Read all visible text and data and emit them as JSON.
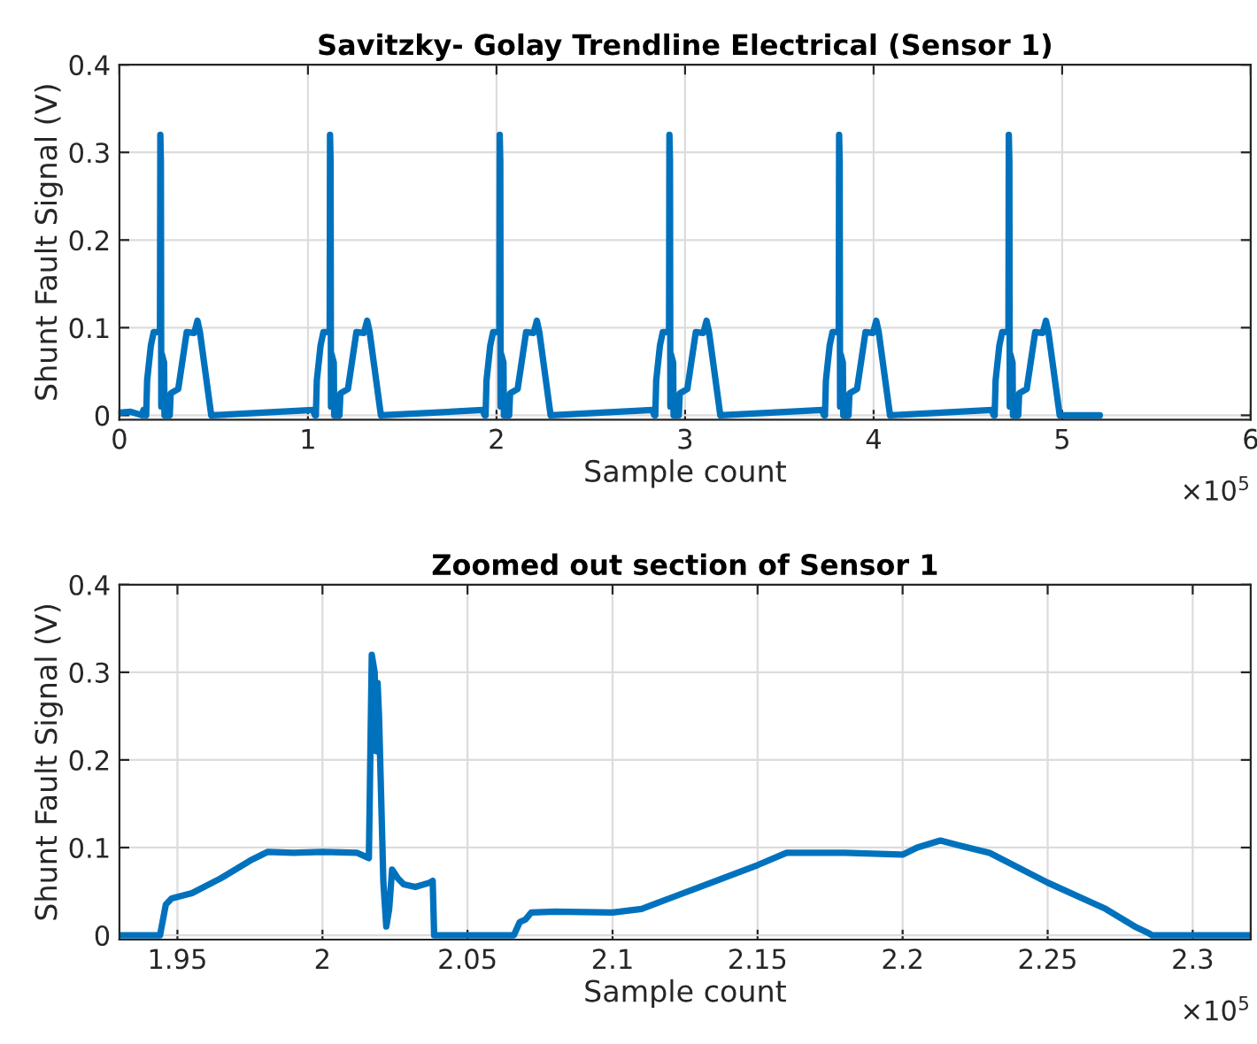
{
  "chart_data": [
    {
      "type": "line",
      "title": "Savitzky- Golay Trendline Electrical (Sensor 1)",
      "xlabel": "Sample count",
      "ylabel": "Shunt Fault Signal (V)",
      "annotations": [
        "×10$^{5}$"
      ],
      "grid": true,
      "marker": "none",
      "line_style": "solid",
      "xlim": [
        0,
        6
      ],
      "xticks": [
        0,
        1,
        2,
        3,
        4,
        5,
        6
      ],
      "ylim": [
        -0.005,
        0.4
      ],
      "yticks": [
        0,
        0.1,
        0.2,
        0.3,
        0.4
      ],
      "series": [
        {
          "color": "#0072bd",
          "x": [
            0,
            0.06,
            0.09,
            0.12,
            0.127,
            0.137,
            0.142,
            0.147,
            0.167,
            0.182,
            0.215,
            0.217,
            0.22,
            0.222,
            0.225,
            0.237,
            0.239,
            0.267,
            0.272,
            0.312,
            0.357,
            0.397,
            0.414,
            0.427,
            0.487,
            1.027,
            1.037,
            1.042,
            1.047,
            1.067,
            1.082,
            1.115,
            1.117,
            1.12,
            1.122,
            1.125,
            1.137,
            1.139,
            1.167,
            1.172,
            1.212,
            1.257,
            1.297,
            1.314,
            1.327,
            1.387,
            1.927,
            1.937,
            1.942,
            1.947,
            1.967,
            1.982,
            2.015,
            2.017,
            2.02,
            2.022,
            2.025,
            2.037,
            2.039,
            2.067,
            2.072,
            2.112,
            2.157,
            2.197,
            2.214,
            2.227,
            2.287,
            2.827,
            2.837,
            2.842,
            2.847,
            2.867,
            2.882,
            2.915,
            2.917,
            2.92,
            2.922,
            2.925,
            2.937,
            2.939,
            2.967,
            2.972,
            3.012,
            3.057,
            3.097,
            3.114,
            3.127,
            3.187,
            3.727,
            3.737,
            3.742,
            3.747,
            3.767,
            3.782,
            3.815,
            3.817,
            3.82,
            3.822,
            3.825,
            3.837,
            3.839,
            3.867,
            3.872,
            3.912,
            3.957,
            3.997,
            4.014,
            4.027,
            4.087,
            4.627,
            4.637,
            4.642,
            4.647,
            4.667,
            4.682,
            4.715,
            4.717,
            4.72,
            4.722,
            4.725,
            4.737,
            4.739,
            4.767,
            4.772,
            4.812,
            4.857,
            4.897,
            4.914,
            4.927,
            4.987,
            5.2
          ],
          "values": [
            0.003,
            0.004,
            0.002,
            0,
            0.006,
            0,
            0,
            0.04,
            0.08,
            0.095,
            0.095,
            0.32,
            0.29,
            0.01,
            0.07,
            0.06,
            0,
            0,
            0.025,
            0.03,
            0.095,
            0.094,
            0.108,
            0.095,
            0,
            0.006,
            0,
            0,
            0.04,
            0.08,
            0.095,
            0.095,
            0.32,
            0.29,
            0.01,
            0.07,
            0.06,
            0,
            0,
            0.025,
            0.03,
            0.095,
            0.094,
            0.108,
            0.095,
            0,
            0.006,
            0,
            0,
            0.04,
            0.08,
            0.095,
            0.095,
            0.32,
            0.29,
            0.01,
            0.07,
            0.06,
            0,
            0,
            0.025,
            0.03,
            0.095,
            0.094,
            0.108,
            0.095,
            0,
            0.006,
            0,
            0,
            0.04,
            0.08,
            0.095,
            0.095,
            0.32,
            0.29,
            0.01,
            0.07,
            0.06,
            0,
            0,
            0.025,
            0.03,
            0.095,
            0.094,
            0.108,
            0.095,
            0,
            0.006,
            0,
            0,
            0.04,
            0.08,
            0.095,
            0.095,
            0.32,
            0.29,
            0.01,
            0.07,
            0.06,
            0,
            0,
            0.025,
            0.03,
            0.095,
            0.094,
            0.108,
            0.095,
            0,
            0.006,
            0,
            0,
            0.04,
            0.08,
            0.095,
            0.095,
            0.32,
            0.29,
            0.01,
            0.07,
            0.06,
            0,
            0,
            0.025,
            0.03,
            0.095,
            0.094,
            0.108,
            0.095,
            0,
            0
          ]
        }
      ]
    },
    {
      "type": "line",
      "title": "Zoomed out section of Sensor 1",
      "xlabel": "Sample count",
      "ylabel": "Shunt Fault Signal (V)",
      "annotations": [
        "×10$^{5}$"
      ],
      "grid": true,
      "marker": "none",
      "line_style": "solid",
      "xlim": [
        1.93,
        2.32
      ],
      "xticks": [
        1.95,
        2,
        2.05,
        2.1,
        2.15,
        2.2,
        2.25,
        2.3
      ],
      "ylim": [
        -0.005,
        0.4
      ],
      "yticks": [
        0,
        0.1,
        0.2,
        0.3,
        0.4
      ],
      "series": [
        {
          "color": "#0072bd",
          "x": [
            1.93,
            1.944,
            1.946,
            1.948,
            1.955,
            1.965,
            1.975,
            1.981,
            1.99,
            2.0,
            2.012,
            2.016,
            2.017,
            2.018,
            2.0185,
            2.019,
            2.0195,
            2.021,
            2.022,
            2.023,
            2.024,
            2.026,
            2.028,
            2.032,
            2.037,
            2.038,
            2.0385,
            2.05,
            2.066,
            2.068,
            2.07,
            2.072,
            2.08,
            2.1,
            2.11,
            2.13,
            2.15,
            2.16,
            2.18,
            2.2,
            2.205,
            2.213,
            2.22,
            2.23,
            2.25,
            2.27,
            2.28,
            2.285,
            2.286,
            2.32
          ],
          "values": [
            0,
            0,
            0.035,
            0.042,
            0.048,
            0.065,
            0.085,
            0.095,
            0.094,
            0.095,
            0.094,
            0.088,
            0.32,
            0.3,
            0.21,
            0.288,
            0.25,
            0.06,
            0.01,
            0.03,
            0.075,
            0.065,
            0.058,
            0.055,
            0.06,
            0.062,
            0,
            0,
            0,
            0.015,
            0.018,
            0.026,
            0.027,
            0.026,
            0.03,
            0.055,
            0.08,
            0.094,
            0.094,
            0.092,
            0.1,
            0.108,
            0.102,
            0.094,
            0.06,
            0.03,
            0.01,
            0.002,
            0,
            0
          ]
        }
      ]
    }
  ]
}
